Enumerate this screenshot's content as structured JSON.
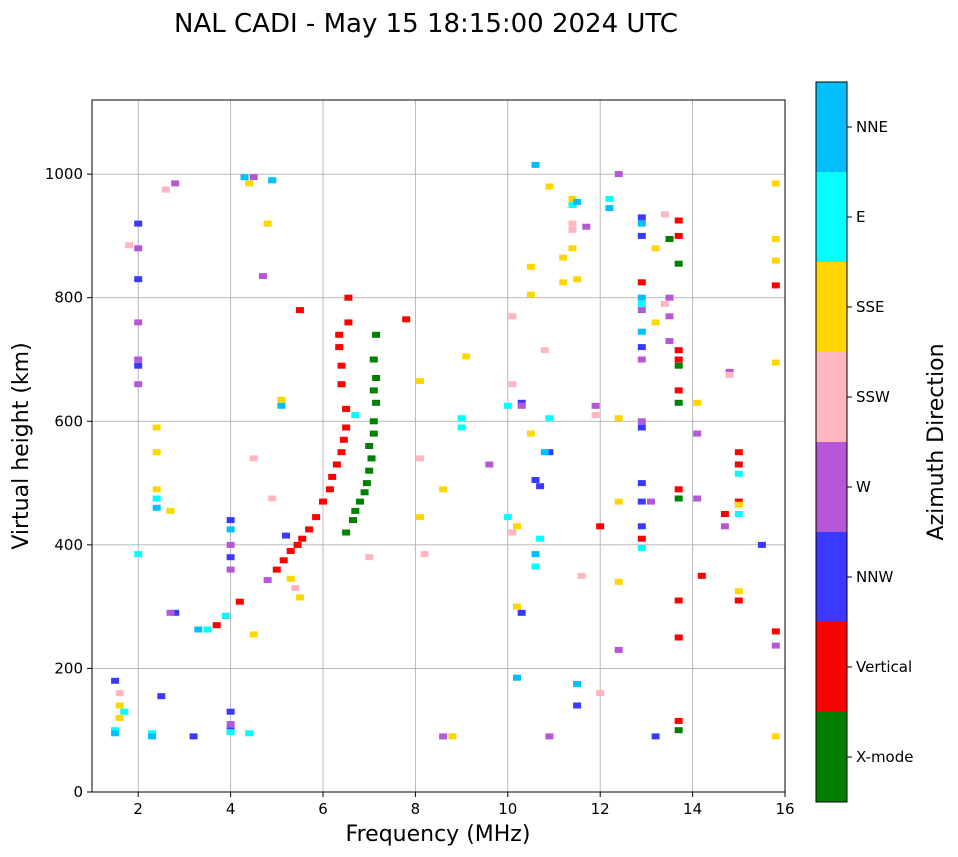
{
  "chart_data": {
    "type": "scatter",
    "title": "NAL CADI - May 15 18:15:00 2024 UTC",
    "xlabel": "Frequency (MHz)",
    "ylabel": "Virtual height (km)",
    "xlim": [
      1,
      16
    ],
    "ylim": [
      0,
      1120
    ],
    "xticks": [
      2,
      4,
      6,
      8,
      10,
      12,
      14,
      16
    ],
    "yticks": [
      0,
      200,
      400,
      600,
      800,
      1000
    ],
    "grid": true,
    "legend_placement": "colorbar-right",
    "colorbar": {
      "label": "Azimuth Direction",
      "categories": [
        {
          "name": "X-mode",
          "color": "#008000"
        },
        {
          "name": "Vertical",
          "color": "#ff0000"
        },
        {
          "name": "NNW",
          "color": "#3a3aff"
        },
        {
          "name": "W",
          "color": "#b557d6"
        },
        {
          "name": "SSW",
          "color": "#ffb6c1"
        },
        {
          "name": "SSE",
          "color": "#ffd700"
        },
        {
          "name": "E",
          "color": "#00ffff"
        },
        {
          "name": "NNE",
          "color": "#00bfff"
        }
      ]
    },
    "series": [
      {
        "name": "X-mode",
        "points": [
          [
            6.5,
            420
          ],
          [
            6.65,
            440
          ],
          [
            6.7,
            455
          ],
          [
            6.8,
            470
          ],
          [
            6.9,
            485
          ],
          [
            6.95,
            500
          ],
          [
            7.0,
            520
          ],
          [
            7.05,
            540
          ],
          [
            7.0,
            560
          ],
          [
            7.1,
            580
          ],
          [
            7.1,
            600
          ],
          [
            7.15,
            630
          ],
          [
            7.1,
            650
          ],
          [
            7.15,
            670
          ],
          [
            7.1,
            700
          ],
          [
            7.15,
            740
          ],
          [
            13.7,
            100
          ],
          [
            13.7,
            475
          ],
          [
            13.7,
            630
          ],
          [
            13.7,
            690
          ],
          [
            13.7,
            855
          ],
          [
            13.5,
            895
          ]
        ]
      },
      {
        "name": "Vertical",
        "points": [
          [
            3.7,
            270
          ],
          [
            3.9,
            285
          ],
          [
            4.2,
            308
          ],
          [
            5.0,
            360
          ],
          [
            5.15,
            375
          ],
          [
            5.3,
            390
          ],
          [
            5.45,
            400
          ],
          [
            5.55,
            410
          ],
          [
            5.7,
            425
          ],
          [
            5.85,
            445
          ],
          [
            6.0,
            470
          ],
          [
            6.15,
            490
          ],
          [
            6.2,
            510
          ],
          [
            6.3,
            530
          ],
          [
            6.4,
            550
          ],
          [
            6.45,
            570
          ],
          [
            6.5,
            590
          ],
          [
            6.5,
            620
          ],
          [
            6.4,
            660
          ],
          [
            6.4,
            690
          ],
          [
            6.35,
            720
          ],
          [
            6.35,
            740
          ],
          [
            6.55,
            760
          ],
          [
            6.55,
            800
          ],
          [
            5.5,
            780
          ],
          [
            7.8,
            765
          ],
          [
            12.9,
            410
          ],
          [
            12.9,
            825
          ],
          [
            13.7,
            115
          ],
          [
            13.7,
            250
          ],
          [
            13.7,
            310
          ],
          [
            13.7,
            490
          ],
          [
            13.7,
            650
          ],
          [
            13.7,
            700
          ],
          [
            13.7,
            715
          ],
          [
            13.7,
            900
          ],
          [
            13.7,
            925
          ],
          [
            14.7,
            450
          ],
          [
            15.0,
            530
          ],
          [
            15.0,
            550
          ],
          [
            15.0,
            470
          ],
          [
            15.0,
            310
          ],
          [
            15.8,
            260
          ],
          [
            15.8,
            820
          ],
          [
            12.0,
            430
          ],
          [
            14.2,
            350
          ]
        ]
      },
      {
        "name": "NNW",
        "points": [
          [
            1.5,
            180
          ],
          [
            2.0,
            920
          ],
          [
            2.0,
            830
          ],
          [
            2.0,
            690
          ],
          [
            2.5,
            155
          ],
          [
            2.8,
            290
          ],
          [
            3.2,
            90
          ],
          [
            4.0,
            100
          ],
          [
            4.0,
            130
          ],
          [
            4.0,
            380
          ],
          [
            4.0,
            440
          ],
          [
            5.2,
            415
          ],
          [
            10.3,
            630
          ],
          [
            10.3,
            290
          ],
          [
            10.6,
            505
          ],
          [
            10.7,
            495
          ],
          [
            10.9,
            550
          ],
          [
            11.5,
            140
          ],
          [
            12.9,
            500
          ],
          [
            12.9,
            470
          ],
          [
            12.9,
            430
          ],
          [
            12.9,
            590
          ],
          [
            12.9,
            720
          ],
          [
            12.9,
            900
          ],
          [
            12.9,
            930
          ],
          [
            13.2,
            90
          ],
          [
            15.5,
            400
          ]
        ]
      },
      {
        "name": "W",
        "points": [
          [
            2.0,
            880
          ],
          [
            2.0,
            760
          ],
          [
            2.0,
            700
          ],
          [
            2.0,
            660
          ],
          [
            2.7,
            290
          ],
          [
            2.8,
            985
          ],
          [
            4.0,
            110
          ],
          [
            4.0,
            360
          ],
          [
            4.0,
            400
          ],
          [
            4.5,
            995
          ],
          [
            4.7,
            835
          ],
          [
            4.8,
            343
          ],
          [
            8.6,
            90
          ],
          [
            9.6,
            530
          ],
          [
            10.3,
            625
          ],
          [
            10.9,
            90
          ],
          [
            11.7,
            915
          ],
          [
            11.9,
            625
          ],
          [
            12.4,
            1000
          ],
          [
            12.4,
            230
          ],
          [
            12.9,
            600
          ],
          [
            12.9,
            700
          ],
          [
            12.9,
            780
          ],
          [
            13.1,
            470
          ],
          [
            13.5,
            800
          ],
          [
            13.5,
            770
          ],
          [
            13.5,
            730
          ],
          [
            14.1,
            580
          ],
          [
            14.1,
            475
          ],
          [
            14.7,
            430
          ],
          [
            14.8,
            680
          ],
          [
            15.8,
            237
          ]
        ]
      },
      {
        "name": "SSW",
        "points": [
          [
            1.6,
            160
          ],
          [
            1.8,
            885
          ],
          [
            2.6,
            975
          ],
          [
            4.5,
            540
          ],
          [
            4.9,
            475
          ],
          [
            5.4,
            330
          ],
          [
            7.0,
            380
          ],
          [
            8.1,
            540
          ],
          [
            8.2,
            385
          ],
          [
            10.1,
            660
          ],
          [
            10.1,
            770
          ],
          [
            10.1,
            420
          ],
          [
            10.8,
            715
          ],
          [
            11.4,
            910
          ],
          [
            11.4,
            920
          ],
          [
            11.6,
            350
          ],
          [
            11.9,
            610
          ],
          [
            12.0,
            160
          ],
          [
            13.4,
            935
          ],
          [
            13.4,
            790
          ],
          [
            14.8,
            675
          ]
        ]
      },
      {
        "name": "SSE",
        "points": [
          [
            1.6,
            120
          ],
          [
            1.6,
            140
          ],
          [
            2.4,
            590
          ],
          [
            2.4,
            550
          ],
          [
            2.4,
            490
          ],
          [
            2.7,
            455
          ],
          [
            4.4,
            985
          ],
          [
            4.5,
            255
          ],
          [
            4.8,
            920
          ],
          [
            5.1,
            635
          ],
          [
            5.3,
            345
          ],
          [
            5.5,
            315
          ],
          [
            8.1,
            445
          ],
          [
            8.1,
            665
          ],
          [
            8.6,
            490
          ],
          [
            8.8,
            90
          ],
          [
            9.1,
            705
          ],
          [
            10.2,
            430
          ],
          [
            10.2,
            300
          ],
          [
            10.2,
            185
          ],
          [
            10.5,
            580
          ],
          [
            10.5,
            805
          ],
          [
            10.5,
            850
          ],
          [
            10.9,
            980
          ],
          [
            11.2,
            825
          ],
          [
            11.2,
            865
          ],
          [
            11.5,
            830
          ],
          [
            11.4,
            880
          ],
          [
            11.4,
            960
          ],
          [
            12.4,
            605
          ],
          [
            12.4,
            470
          ],
          [
            12.4,
            340
          ],
          [
            13.2,
            880
          ],
          [
            13.2,
            760
          ],
          [
            14.1,
            630
          ],
          [
            15.0,
            325
          ],
          [
            15.0,
            465
          ],
          [
            15.8,
            90
          ],
          [
            15.8,
            695
          ],
          [
            15.8,
            860
          ],
          [
            15.8,
            895
          ],
          [
            15.8,
            985
          ]
        ]
      },
      {
        "name": "E",
        "points": [
          [
            1.5,
            100
          ],
          [
            1.7,
            130
          ],
          [
            2.0,
            385
          ],
          [
            2.3,
            95
          ],
          [
            2.4,
            475
          ],
          [
            3.5,
            263
          ],
          [
            3.9,
            285
          ],
          [
            4.0,
            97
          ],
          [
            4.4,
            95
          ],
          [
            4.9,
            990
          ],
          [
            6.7,
            610
          ],
          [
            9.0,
            590
          ],
          [
            9.0,
            605
          ],
          [
            10.0,
            445
          ],
          [
            10.0,
            625
          ],
          [
            10.6,
            365
          ],
          [
            10.7,
            410
          ],
          [
            10.9,
            605
          ],
          [
            11.4,
            950
          ],
          [
            12.2,
            960
          ],
          [
            12.9,
            395
          ],
          [
            12.9,
            790
          ],
          [
            15.0,
            450
          ],
          [
            15.0,
            515
          ]
        ]
      },
      {
        "name": "NNE",
        "points": [
          [
            1.5,
            95
          ],
          [
            2.3,
            90
          ],
          [
            2.4,
            460
          ],
          [
            3.3,
            263
          ],
          [
            4.0,
            425
          ],
          [
            4.3,
            995
          ],
          [
            4.9,
            990
          ],
          [
            5.1,
            625
          ],
          [
            10.2,
            185
          ],
          [
            10.6,
            385
          ],
          [
            10.6,
            1015
          ],
          [
            10.8,
            550
          ],
          [
            11.5,
            175
          ],
          [
            11.5,
            955
          ],
          [
            12.2,
            945
          ],
          [
            12.9,
            745
          ],
          [
            12.9,
            800
          ],
          [
            12.9,
            920
          ]
        ]
      }
    ]
  }
}
